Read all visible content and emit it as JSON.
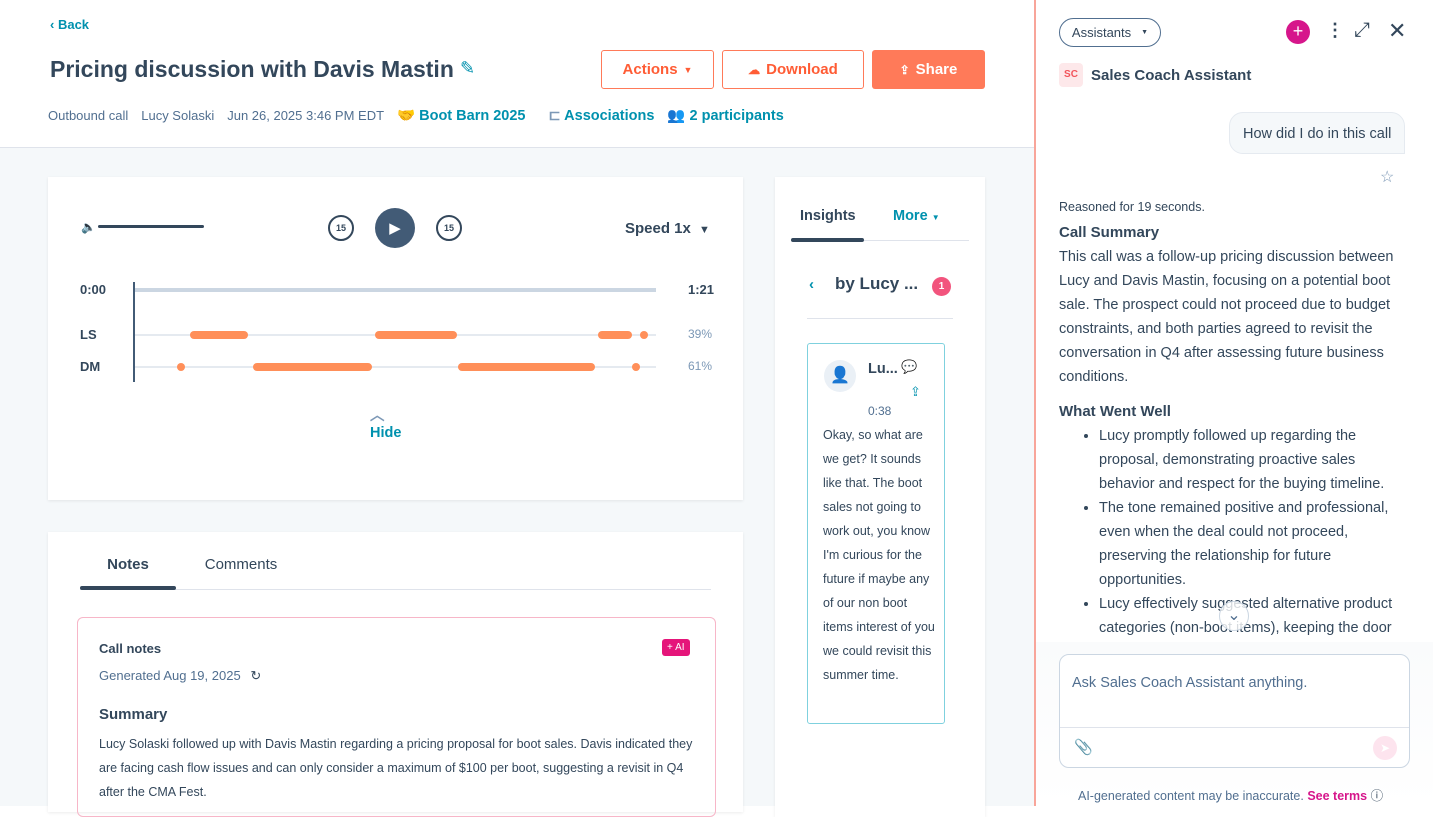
{
  "header": {
    "back": "Back",
    "title": "Pricing discussion with Davis Mastin",
    "actions": "Actions",
    "download": "Download",
    "share": "Share",
    "meta": {
      "type": "Outbound call",
      "owner": "Lucy Solaski",
      "datetime": "Jun 26, 2025 3:46 PM EDT",
      "deal": "Boot Barn 2025",
      "associations": "Associations",
      "participants": "2 participants"
    }
  },
  "player": {
    "speed": "Speed 1x",
    "skip": "15",
    "start": "0:00",
    "end": "1:21",
    "hide": "Hide",
    "duration_s": 81,
    "speakers": [
      {
        "label": "LS",
        "pct": "39%",
        "segments": [
          [
            8.6,
            17.6
          ],
          [
            37.3,
            50.1
          ],
          [
            72,
            77.3
          ],
          [
            79.1,
            79.1
          ]
        ]
      },
      {
        "label": "DM",
        "pct": "61%",
        "segments": [
          [
            7.2,
            7.2
          ],
          [
            18.3,
            36.8
          ],
          [
            50.2,
            71.5
          ],
          [
            77.9,
            77.9
          ]
        ]
      }
    ]
  },
  "notes": {
    "tabs": [
      "Notes",
      "Comments"
    ],
    "title": "Call notes",
    "ai_badge": "+ AI",
    "generated": "Generated Aug 19, 2025",
    "summary_heading": "Summary",
    "summary": "Lucy Solaski followed up with Davis Mastin regarding a pricing proposal for boot sales. Davis indicated they are facing cash flow issues and can only consider a maximum of $100 per boot, suggesting a revisit in Q4 after the CMA Fest."
  },
  "insights": {
    "tabs": [
      "Insights",
      "More"
    ],
    "filter": "by Lucy ...",
    "badge": "1",
    "card": {
      "name": "Lu...",
      "time": "0:38",
      "text": "Okay, so what are we get? It sounds like that. The boot sales not going to work out, you know I'm curious for the future if maybe any of our non boot items interest of you we could revisit this summer time."
    }
  },
  "assistant": {
    "selector": "Assistants",
    "avatar": "SC",
    "name": "Sales Coach Assistant",
    "user_msg": "How did I do in this call",
    "reasoned": "Reasoned for 19 seconds.",
    "summary_heading": "Call Summary",
    "summary": "This call was a follow-up pricing discussion between Lucy and Davis Mastin, focusing on a potential boot sale. The prospect could not proceed due to budget constraints, and both parties agreed to revisit the conversation in Q4 after assessing future business conditions.",
    "well_heading": "What Went Well",
    "well": [
      "Lucy promptly followed up regarding the proposal, demonstrating proactive sales behavior and respect for the buying timeline.",
      "The tone remained positive and professional, even when the deal could not proceed, preserving the relationship for future opportunities.",
      "Lucy effectively suggested alternative product categories (non-boot items), keeping the door"
    ],
    "placeholder": "Ask Sales Coach Assistant anything.",
    "disclaimer": "AI-generated content may be inaccurate.",
    "see_terms": "See terms"
  },
  "colors": {
    "accent": "#ff7a59",
    "link": "#0091ae",
    "ai": "#e5157a",
    "segment": "#ff8f59"
  }
}
